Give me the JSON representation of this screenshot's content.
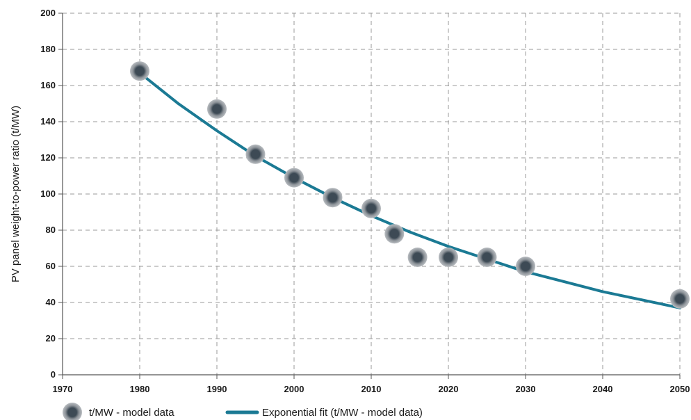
{
  "chart_data": {
    "type": "scatter",
    "xlabel": "",
    "ylabel": "PV panel weight-to-power ratio (t/MW)",
    "xlim": [
      1970,
      2050
    ],
    "ylim": [
      0,
      200
    ],
    "x_ticks": [
      1970,
      1980,
      1990,
      2000,
      2010,
      2020,
      2030,
      2040,
      2050
    ],
    "y_ticks": [
      0,
      20,
      40,
      60,
      80,
      100,
      120,
      140,
      160,
      180,
      200
    ],
    "grid": true,
    "legend_position": "bottom",
    "series": [
      {
        "name": "t/MW - model data",
        "kind": "scatter",
        "color": "#3d4a55",
        "x": [
          1980,
          1990,
          1995,
          2000,
          2005,
          2010,
          2013,
          2016,
          2020,
          2025,
          2030,
          2050
        ],
        "y": [
          168,
          147,
          122,
          109,
          98,
          92,
          78,
          65,
          65,
          65,
          60,
          42
        ]
      },
      {
        "name": "Exponential fit (t/MW - model data)",
        "kind": "line",
        "color": "#1b7a94",
        "x": [
          1980,
          1985,
          1990,
          1995,
          2000,
          2005,
          2010,
          2015,
          2020,
          2025,
          2030,
          2035,
          2040,
          2045,
          2050
        ],
        "y": [
          167,
          150,
          135,
          121,
          109,
          98,
          88,
          79,
          71,
          64,
          57,
          51.5,
          46,
          41.5,
          37
        ]
      }
    ]
  }
}
